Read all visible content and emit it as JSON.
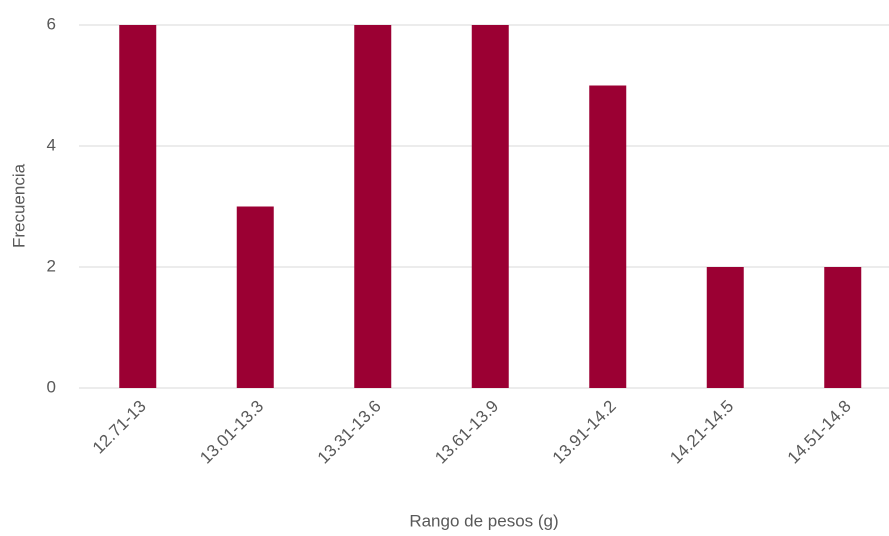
{
  "chart_data": {
    "type": "bar",
    "categories": [
      "12.71-13",
      "13.01-13.3",
      "13.31-13.6",
      "13.61-13.9",
      "13.91-14.2",
      "14.21-14.5",
      "14.51-14.8"
    ],
    "values": [
      6,
      3,
      6,
      6,
      5,
      2,
      2
    ],
    "color": "#9b0033",
    "xlabel": "Rango de pesos (g)",
    "ylabel": "Frecuencia",
    "ylim": [
      0,
      6
    ],
    "yticks": [
      0,
      2,
      4,
      6
    ],
    "grid": true
  }
}
